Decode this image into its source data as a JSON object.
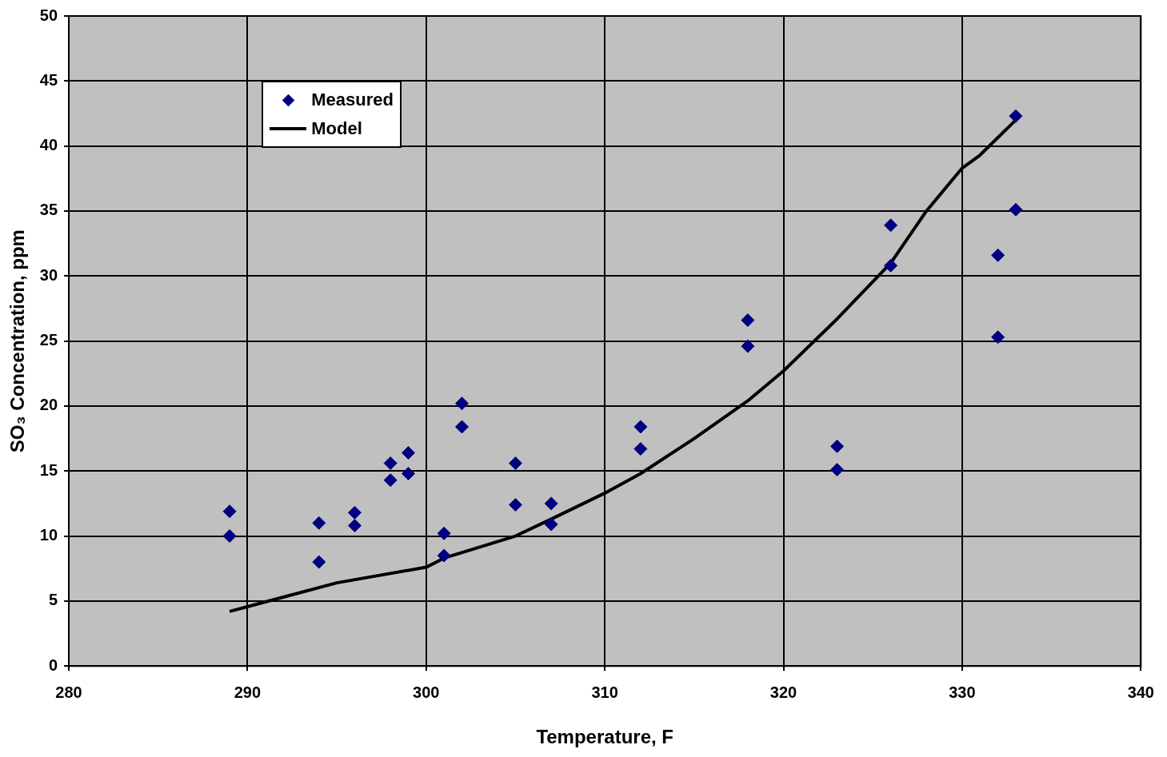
{
  "chart_data": {
    "type": "scatter",
    "xlabel": "Temperature, F",
    "ylabel": "SO₃ Concentration, ppm",
    "xlim": [
      280,
      340
    ],
    "xticks": [
      280,
      290,
      300,
      310,
      320,
      330,
      340
    ],
    "ylim": [
      0,
      50
    ],
    "yticks": [
      0,
      5,
      10,
      15,
      20,
      25,
      30,
      35,
      40,
      45,
      50
    ],
    "grid": true,
    "legend": "top left",
    "series": [
      {
        "name": "Measured",
        "marker": "diamond",
        "color": "#000080",
        "x": [
          289,
          289,
          294,
          294,
          296,
          296,
          298,
          298,
          299,
          299,
          301,
          301,
          302,
          302,
          305,
          305,
          307,
          307,
          312,
          312,
          318,
          318,
          323,
          323,
          326,
          326,
          332,
          332,
          333,
          333
        ],
        "values": [
          11.9,
          10.0,
          11.0,
          8.0,
          11.8,
          10.8,
          15.6,
          14.3,
          16.4,
          14.8,
          10.2,
          8.5,
          20.2,
          18.4,
          15.6,
          12.4,
          12.5,
          10.9,
          18.4,
          16.7,
          26.6,
          24.6,
          16.9,
          15.1,
          33.9,
          30.8,
          31.6,
          25.3,
          42.3,
          35.1
        ]
      },
      {
        "name": "Model",
        "type": "line",
        "marker": "none",
        "color": "#000000",
        "line_style": "solid",
        "x": [
          289,
          292,
          295,
          300,
          301,
          305,
          307,
          310,
          312,
          315,
          318,
          320,
          323,
          326,
          328,
          330,
          331,
          333
        ],
        "values": [
          4.2,
          5.3,
          6.4,
          7.6,
          8.3,
          10.0,
          11.3,
          13.3,
          14.8,
          17.5,
          20.4,
          22.7,
          26.7,
          31.0,
          35.0,
          38.3,
          39.3,
          42.0
        ]
      }
    ]
  }
}
